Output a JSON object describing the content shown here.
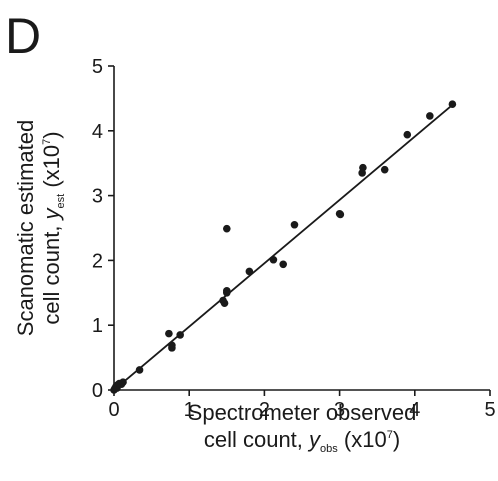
{
  "chart_data": {
    "type": "scatter",
    "panel_label": "D",
    "xlabel": {
      "line1": "Spectrometer observed",
      "line2_prefix": "cell count, ",
      "var": "y",
      "sub": "obs",
      "unit_open": " (x10",
      "sup": "7",
      "unit_close": ")"
    },
    "ylabel": {
      "line1": "Scanomatic estimated",
      "line2_prefix": "cell count, ",
      "var": "y",
      "sub": "est",
      "unit_open": " (x10",
      "sup": "7",
      "unit_close": ")"
    },
    "xlim": [
      0,
      5
    ],
    "ylim": [
      0,
      5
    ],
    "xticks": [
      "0",
      "1",
      "2",
      "3",
      "4",
      "5"
    ],
    "yticks": [
      "0",
      "1",
      "2",
      "3",
      "4",
      "5"
    ],
    "grid": false,
    "fit_line": {
      "x": [
        0,
        4.5
      ],
      "y": [
        0,
        4.4
      ]
    },
    "points": [
      {
        "x": 0.0,
        "y": 0.0
      },
      {
        "x": 0.01,
        "y": 0.02
      },
      {
        "x": 0.02,
        "y": 0.04
      },
      {
        "x": 0.03,
        "y": 0.06
      },
      {
        "x": 0.04,
        "y": 0.03
      },
      {
        "x": 0.05,
        "y": 0.08
      },
      {
        "x": 0.07,
        "y": 0.1
      },
      {
        "x": 0.1,
        "y": 0.09
      },
      {
        "x": 0.12,
        "y": 0.12
      },
      {
        "x": 0.34,
        "y": 0.31
      },
      {
        "x": 0.73,
        "y": 0.87
      },
      {
        "x": 0.77,
        "y": 0.69
      },
      {
        "x": 0.77,
        "y": 0.65
      },
      {
        "x": 0.88,
        "y": 0.85
      },
      {
        "x": 1.45,
        "y": 1.38
      },
      {
        "x": 1.47,
        "y": 1.34
      },
      {
        "x": 1.5,
        "y": 1.5
      },
      {
        "x": 1.5,
        "y": 1.53
      },
      {
        "x": 1.5,
        "y": 2.49
      },
      {
        "x": 1.8,
        "y": 1.83
      },
      {
        "x": 2.12,
        "y": 2.01
      },
      {
        "x": 2.25,
        "y": 1.94
      },
      {
        "x": 2.4,
        "y": 2.55
      },
      {
        "x": 3.0,
        "y": 2.72
      },
      {
        "x": 3.01,
        "y": 2.71
      },
      {
        "x": 3.3,
        "y": 3.35
      },
      {
        "x": 3.31,
        "y": 3.43
      },
      {
        "x": 3.6,
        "y": 3.4
      },
      {
        "x": 3.9,
        "y": 3.94
      },
      {
        "x": 4.2,
        "y": 4.23
      },
      {
        "x": 4.5,
        "y": 4.41
      }
    ]
  }
}
